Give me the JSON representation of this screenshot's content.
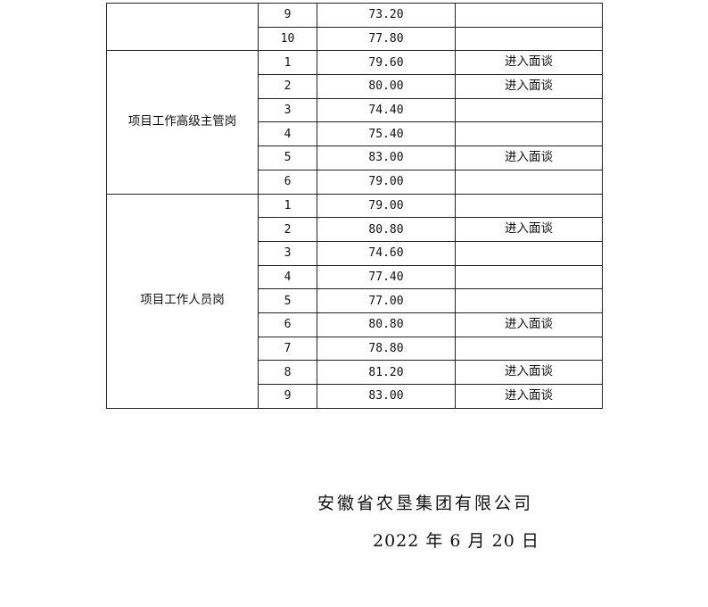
{
  "groups": [
    {
      "position": "",
      "rows": [
        {
          "no": "9",
          "score": "73.20",
          "result": ""
        },
        {
          "no": "10",
          "score": "77.80",
          "result": ""
        }
      ]
    },
    {
      "position": "项目工作高级主管岗",
      "rows": [
        {
          "no": "1",
          "score": "79.60",
          "result": "进入面谈"
        },
        {
          "no": "2",
          "score": "80.00",
          "result": "进入面谈"
        },
        {
          "no": "3",
          "score": "74.40",
          "result": ""
        },
        {
          "no": "4",
          "score": "75.40",
          "result": ""
        },
        {
          "no": "5",
          "score": "83.00",
          "result": "进入面谈"
        },
        {
          "no": "6",
          "score": "79.00",
          "result": ""
        }
      ]
    },
    {
      "position": "项目工作人员岗",
      "rows": [
        {
          "no": "1",
          "score": "79.00",
          "result": ""
        },
        {
          "no": "2",
          "score": "80.80",
          "result": "进入面谈"
        },
        {
          "no": "3",
          "score": "74.60",
          "result": ""
        },
        {
          "no": "4",
          "score": "77.40",
          "result": ""
        },
        {
          "no": "5",
          "score": "77.00",
          "result": ""
        },
        {
          "no": "6",
          "score": "80.80",
          "result": "进入面谈"
        },
        {
          "no": "7",
          "score": "78.80",
          "result": ""
        },
        {
          "no": "8",
          "score": "81.20",
          "result": "进入面谈"
        },
        {
          "no": "9",
          "score": "83.00",
          "result": "进入面谈"
        }
      ]
    }
  ],
  "footer": {
    "organization": "安徽省农垦集团有限公司",
    "date": "2022 年 6 月 20 日"
  }
}
